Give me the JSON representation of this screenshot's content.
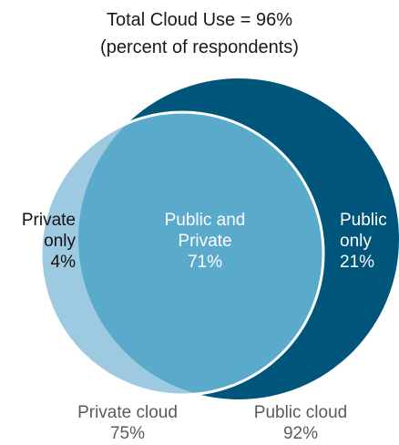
{
  "title": {
    "line1": "Total Cloud Use = 96%",
    "line2": "(percent of respondents)"
  },
  "colors": {
    "private_cloud": "#9ecae1",
    "public_cloud": "#00557a",
    "overlap": "#5aaacb",
    "outline": "#ffffff"
  },
  "regions": {
    "private_only": {
      "label_line1": "Private",
      "label_line2": "only",
      "value": "4%"
    },
    "public_and_private": {
      "label_line1": "Public and",
      "label_line2": "Private",
      "value": "71%"
    },
    "public_only": {
      "label_line1": "Public",
      "label_line2": "only",
      "value": "21%"
    }
  },
  "sets": {
    "private_cloud": {
      "label": "Private cloud",
      "value": "75%"
    },
    "public_cloud": {
      "label": "Public cloud",
      "value": "92%"
    }
  }
}
